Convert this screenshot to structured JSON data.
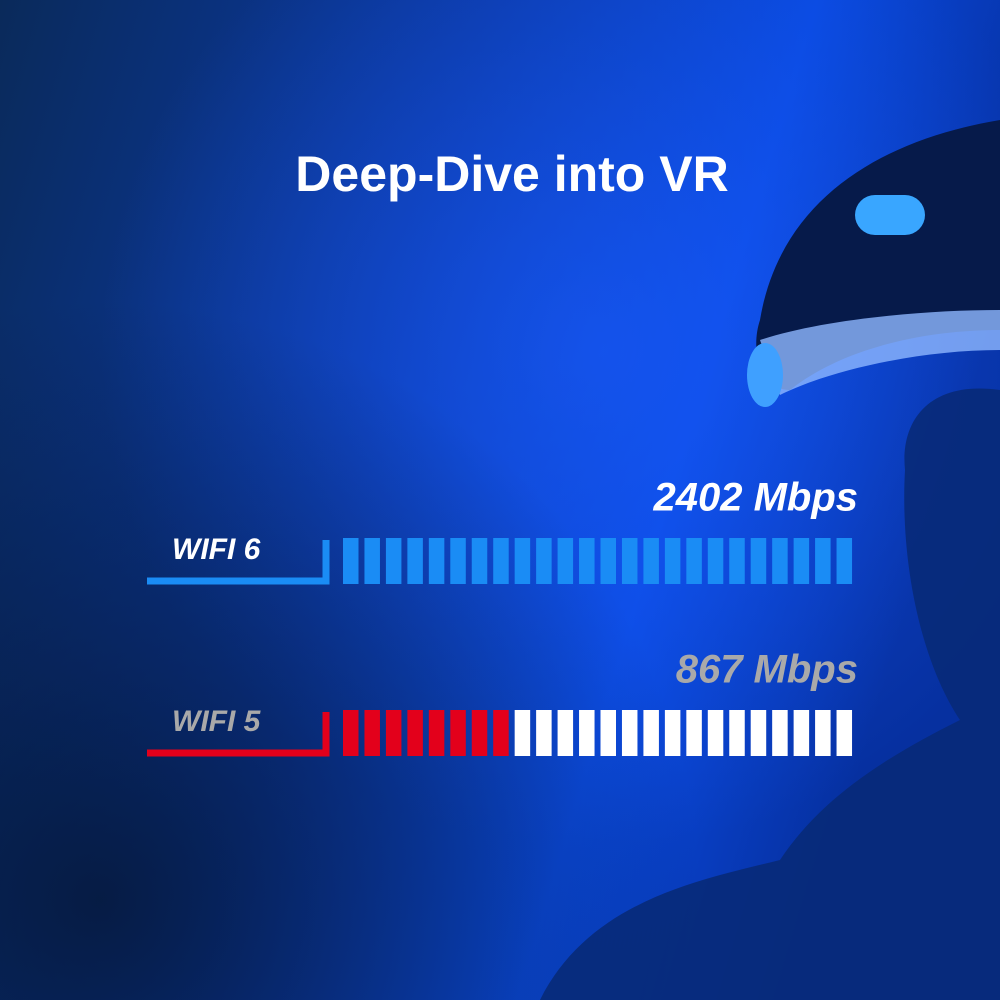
{
  "chart_data": {
    "type": "segmented-bar",
    "title": "Deep-Dive into VR",
    "categories": [
      "WIFI 6",
      "WIFI 5"
    ],
    "values": [
      2402,
      867
    ],
    "value_labels": [
      "2402 Mbps",
      "867 Mbps"
    ],
    "colors": [
      "#1a8cf5",
      "#e3001b"
    ],
    "label_colors": [
      "#ffffff",
      "#a9a9a9"
    ]
  }
}
